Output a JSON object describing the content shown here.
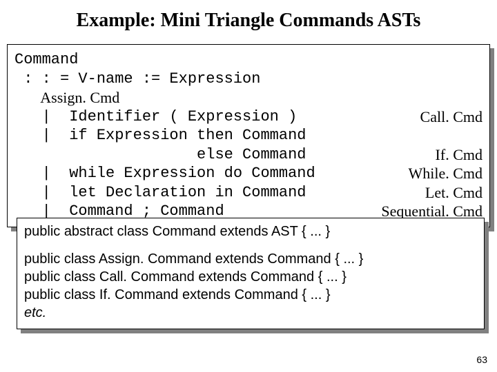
{
  "title": "Example: Mini Triangle Commands ASTs",
  "grammar": {
    "head": "Command",
    "rows": [
      {
        "lhs": " : : = V-name := Expression",
        "label": ""
      },
      {
        "lhs": "       Assign. Cmd",
        "label": ""
      },
      {
        "lhs": "   |  Identifier ( Expression )",
        "label": "Call. Cmd"
      },
      {
        "lhs": "   |  if Expression then Command",
        "label": ""
      },
      {
        "lhs": "                    else Command",
        "label": "If. Cmd"
      },
      {
        "lhs": "   |  while Expression do Command",
        "label": "While. Cmd"
      },
      {
        "lhs": "   |  let Declaration in Command",
        "label": "Let. Cmd"
      },
      {
        "lhs": "   |  Command ; Command",
        "label": "Sequential. Cmd"
      }
    ]
  },
  "code": {
    "lines": [
      "public abstract class Command extends AST { ... }",
      "",
      "public class Assign. Command extends Command { ... }",
      "public class Call. Command extends Command { ... }",
      "public class If. Command extends Command { ... }",
      "etc."
    ]
  },
  "slide_number": "63",
  "colors": {
    "background": "#ffffff",
    "text": "#000000",
    "shadow": "#808080",
    "border": "#000000"
  },
  "fonts": {
    "title": {
      "family": "Times New Roman",
      "size_pt": 28,
      "weight": "bold"
    },
    "grammar_mono": {
      "family": "Courier New",
      "size_pt": 22
    },
    "grammar_label": {
      "family": "Times New Roman",
      "size_pt": 22
    },
    "code": {
      "family": "Arial",
      "size_pt": 20
    },
    "slide_number": {
      "family": "Arial",
      "size_pt": 14
    }
  }
}
